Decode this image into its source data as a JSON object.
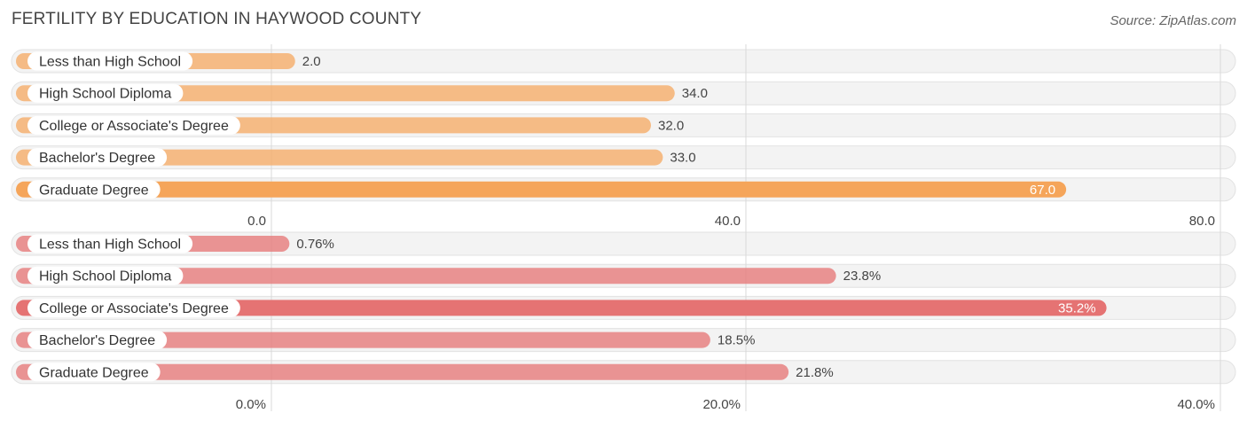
{
  "title": "FERTILITY BY EDUCATION IN HAYWOOD COUNTY",
  "source": "Source: ZipAtlas.com",
  "chart_data": [
    {
      "type": "bar",
      "orientation": "horizontal",
      "categories": [
        "Less than High School",
        "High School Diploma",
        "College or Associate's Degree",
        "Bachelor's Degree",
        "Graduate Degree"
      ],
      "values": [
        2.0,
        34.0,
        32.0,
        33.0,
        67.0
      ],
      "value_labels": [
        "2.0",
        "34.0",
        "32.0",
        "33.0",
        "67.0"
      ],
      "xlim": [
        0,
        80
      ],
      "tick_values": [
        0,
        40,
        80
      ],
      "tick_labels": [
        "0.0",
        "40.0",
        "80.0"
      ],
      "color": "#f5a55a",
      "color_light": "#f9cfa6",
      "grid": true
    },
    {
      "type": "bar",
      "orientation": "horizontal",
      "categories": [
        "Less than High School",
        "High School Diploma",
        "College or Associate's Degree",
        "Bachelor's Degree",
        "Graduate Degree"
      ],
      "values": [
        0.76,
        23.8,
        35.2,
        18.5,
        21.8
      ],
      "value_labels": [
        "0.76%",
        "23.8%",
        "35.2%",
        "18.5%",
        "21.8%"
      ],
      "xlim": [
        0,
        40
      ],
      "tick_values": [
        0,
        20,
        40
      ],
      "tick_labels": [
        "0.0%",
        "20.0%",
        "40.0%"
      ],
      "color": "#e57373",
      "color_light": "#f2b3b3",
      "grid": true
    }
  ]
}
